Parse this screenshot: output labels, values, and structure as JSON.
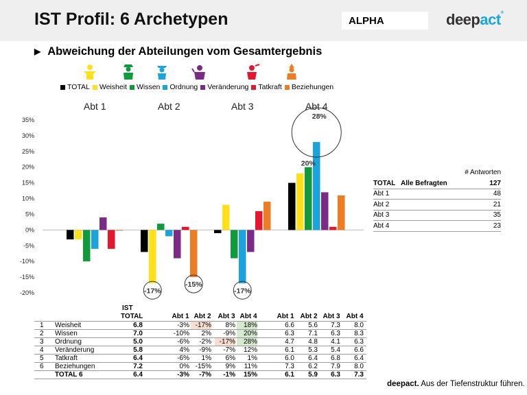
{
  "header": {
    "title": "IST Profil: 6 Archetypen",
    "badge": "ALPHA",
    "logo_a": "deep",
    "logo_b": "act",
    "logo_sup": "®"
  },
  "subtitle": "Abweichung der Abteilungen vom Gesamtergebnis",
  "colors": {
    "TOTAL": "#000000",
    "Weisheit": "#ffe01b",
    "Wissen": "#109a3c",
    "Ordnung": "#1ba3dc",
    "Veränderung": "#7b2a86",
    "Tatkraft": "#e5172f",
    "Beziehungen": "#ec7d23"
  },
  "chart_data": {
    "type": "bar",
    "categories": [
      "Abt 1",
      "Abt 2",
      "Abt 3",
      "Abt 4"
    ],
    "series": [
      {
        "name": "TOTAL",
        "values": [
          -3,
          -7,
          -1,
          15
        ]
      },
      {
        "name": "Weisheit",
        "values": [
          -3,
          -17,
          8,
          18
        ]
      },
      {
        "name": "Wissen",
        "values": [
          -10,
          2,
          -9,
          20
        ]
      },
      {
        "name": "Ordnung",
        "values": [
          -6,
          -2,
          -17,
          28
        ]
      },
      {
        "name": "Veränderung",
        "values": [
          4,
          -9,
          -7,
          12
        ]
      },
      {
        "name": "Tatkraft",
        "values": [
          -6,
          1,
          6,
          1
        ]
      },
      {
        "name": "Beziehungen",
        "values": [
          0,
          -15,
          9,
          11
        ]
      }
    ],
    "ylim": [
      -20,
      35
    ],
    "yticks": [
      "-20%",
      "-15%",
      "-10%",
      "-5%",
      "0%",
      "5%",
      "10%",
      "15%",
      "20%",
      "25%",
      "30%",
      "35%"
    ],
    "ytick_values": [
      -20,
      -15,
      -10,
      -5,
      0,
      5,
      10,
      15,
      20,
      25,
      30,
      35
    ],
    "annotations": [
      {
        "label": "-17%",
        "group": 1,
        "series": 1
      },
      {
        "label": "-15%",
        "group": 1,
        "series": 6
      },
      {
        "label": "-17%",
        "group": 2,
        "series": 3
      },
      {
        "label": "20%",
        "group": 3,
        "series": 2
      },
      {
        "label": "28%",
        "group": 3,
        "series": 3
      }
    ]
  },
  "responses": {
    "header": "# Antworten",
    "rows": [
      {
        "label": "TOTAL",
        "sub": "Alle Befragten",
        "value": "127"
      },
      {
        "label": "Abt 1",
        "sub": "",
        "value": "48"
      },
      {
        "label": "Abt 2",
        "sub": "",
        "value": "21"
      },
      {
        "label": "Abt 3",
        "sub": "",
        "value": "35"
      },
      {
        "label": "Abt 4",
        "sub": "",
        "value": "23"
      }
    ]
  },
  "table": {
    "head_ist": "IST",
    "head_total": "TOTAL",
    "dept_headers": [
      "Abt 1",
      "Abt 2",
      "Abt 3",
      "Abt 4"
    ],
    "rows": [
      {
        "n": "1",
        "name": "Weisheit",
        "total": "6.8",
        "dev": [
          "-3%",
          "-17%",
          "8%",
          "18%"
        ],
        "scores": [
          "6.6",
          "5.6",
          "7.3",
          "8.0"
        ],
        "neg": [
          1
        ],
        "hl": [
          3
        ]
      },
      {
        "n": "2",
        "name": "Wissen",
        "total": "7.0",
        "dev": [
          "-10%",
          "2%",
          "-9%",
          "20%"
        ],
        "scores": [
          "6.3",
          "7.1",
          "6.3",
          "8.3"
        ],
        "neg": [],
        "hl": [
          3
        ]
      },
      {
        "n": "3",
        "name": "Ordnung",
        "total": "5.0",
        "dev": [
          "-6%",
          "-2%",
          "-17%",
          "28%"
        ],
        "scores": [
          "4.7",
          "4.8",
          "4.1",
          "6.3"
        ],
        "neg": [
          2
        ],
        "hl": [
          3
        ]
      },
      {
        "n": "4",
        "name": "Veränderung",
        "total": "5.8",
        "dev": [
          "4%",
          "-9%",
          "-7%",
          "12%"
        ],
        "scores": [
          "6.1",
          "5.3",
          "5.4",
          "6.6"
        ],
        "neg": [],
        "hl": []
      },
      {
        "n": "5",
        "name": "Tatkraft",
        "total": "6.4",
        "dev": [
          "-6%",
          "1%",
          "6%",
          "1%"
        ],
        "scores": [
          "6.0",
          "6.4",
          "6.8",
          "6.4"
        ],
        "neg": [],
        "hl": []
      },
      {
        "n": "6",
        "name": "Beziehungen",
        "total": "7.2",
        "dev": [
          "0%",
          "-15%",
          "9%",
          "11%"
        ],
        "scores": [
          "7.3",
          "6.2",
          "7.9",
          "8.0"
        ],
        "neg": [],
        "hl": []
      },
      {
        "n": "",
        "name": "TOTAL 6",
        "total": "6.4",
        "dev": [
          "-3%",
          "-7%",
          "-1%",
          "15%"
        ],
        "scores": [
          "6.1",
          "5.9",
          "6.3",
          "7.3"
        ],
        "neg": [],
        "hl": [],
        "bold": true
      }
    ]
  },
  "footer": {
    "brand": "deepact.",
    "text": " Aus der Tiefenstruktur führen."
  }
}
